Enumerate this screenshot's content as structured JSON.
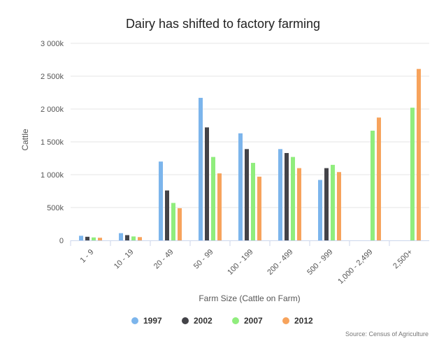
{
  "chart_data": {
    "type": "bar",
    "title": "Dairy has shifted to factory farming",
    "xlabel": "Farm Size (Cattle on Farm)",
    "ylabel": "Cattle",
    "source": "Source: Census of Agriculture",
    "categories": [
      "1 - 9",
      "10 - 19",
      "20 - 49",
      "50 - 99",
      "100 - 199",
      "200 - 499",
      "500 - 999",
      "1,000 - 2,499",
      "2,500+"
    ],
    "ylim": [
      0,
      3000
    ],
    "yticks": [
      {
        "value": 0,
        "label": "0"
      },
      {
        "value": 500,
        "label": "500k"
      },
      {
        "value": 1000,
        "label": "1 000k"
      },
      {
        "value": 1500,
        "label": "1 500k"
      },
      {
        "value": 2000,
        "label": "2 000k"
      },
      {
        "value": 2500,
        "label": "2 500k"
      },
      {
        "value": 3000,
        "label": "3 000k"
      }
    ],
    "grid": true,
    "legend_position": "bottom",
    "series": [
      {
        "name": "1997",
        "color": "#7cb5ec",
        "values": [
          70,
          110,
          1200,
          2170,
          1630,
          1390,
          920,
          null,
          null
        ]
      },
      {
        "name": "2002",
        "color": "#434348",
        "values": [
          55,
          80,
          760,
          1720,
          1390,
          1330,
          1100,
          null,
          null
        ]
      },
      {
        "name": "2007",
        "color": "#90ed7d",
        "values": [
          45,
          60,
          570,
          1270,
          1180,
          1270,
          1150,
          1670,
          2020
        ]
      },
      {
        "name": "2012",
        "color": "#f7a35c",
        "values": [
          40,
          50,
          490,
          1020,
          970,
          1100,
          1040,
          1870,
          2610
        ]
      }
    ]
  }
}
